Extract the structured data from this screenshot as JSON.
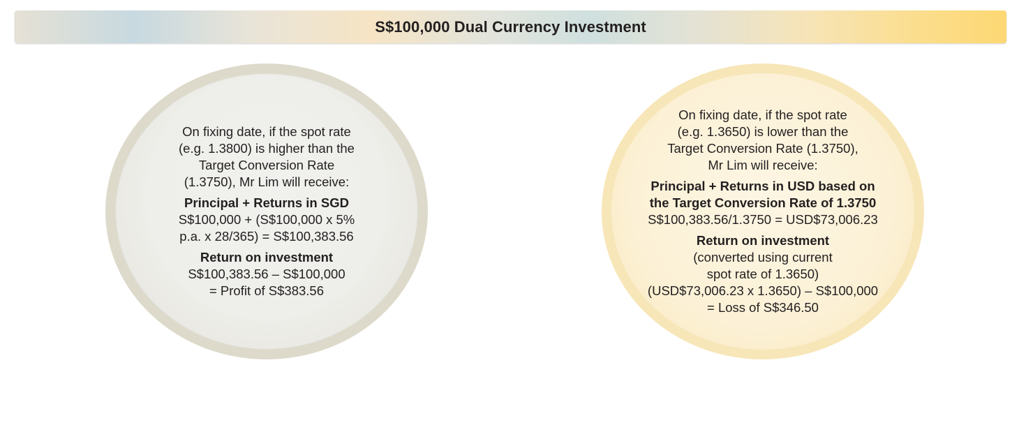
{
  "banner": {
    "title": "S$100,000 Dual Currency Investment"
  },
  "left_bubble": {
    "condition": [
      "On fixing date, if the spot rate",
      "(e.g. 1.3800) is higher than the",
      "Target Conversion Rate",
      "(1.3750), Mr Lim will receive:"
    ],
    "payout_heading": "Principal + Returns in SGD",
    "payout_calc": [
      "S$100,000 + (S$100,000 x 5%",
      "p.a. x 28/365) = S$100,383.56"
    ],
    "return_heading": "Return on investment",
    "return_calc": [
      "S$100,383.56 – S$100,000",
      "= Profit of S$383.56"
    ]
  },
  "right_bubble": {
    "condition": [
      "On fixing date, if the spot rate",
      "(e.g. 1.3650) is lower than the",
      "Target Conversion Rate (1.3750),",
      "Mr Lim will receive:"
    ],
    "payout_heading": [
      "Principal + Returns in USD based on",
      "the Target Conversion Rate of 1.3750"
    ],
    "payout_calc": [
      "S$100,383.56/1.3750 = USD$73,006.23"
    ],
    "return_heading": "Return on investment",
    "return_calc": [
      "(converted using current",
      "spot rate of 1.3650)",
      "(USD$73,006.23 x 1.3650) – S$100,000",
      "= Loss of S$346.50"
    ]
  },
  "colors": {
    "text": "#231f20",
    "left_bubble_fill": "#eeeeea",
    "left_bubble_ring": "#dddacb",
    "right_bubble_fill": "#fcf1d6",
    "right_bubble_ring": "#f7e6b8",
    "banner_accent": "#fdd873"
  }
}
